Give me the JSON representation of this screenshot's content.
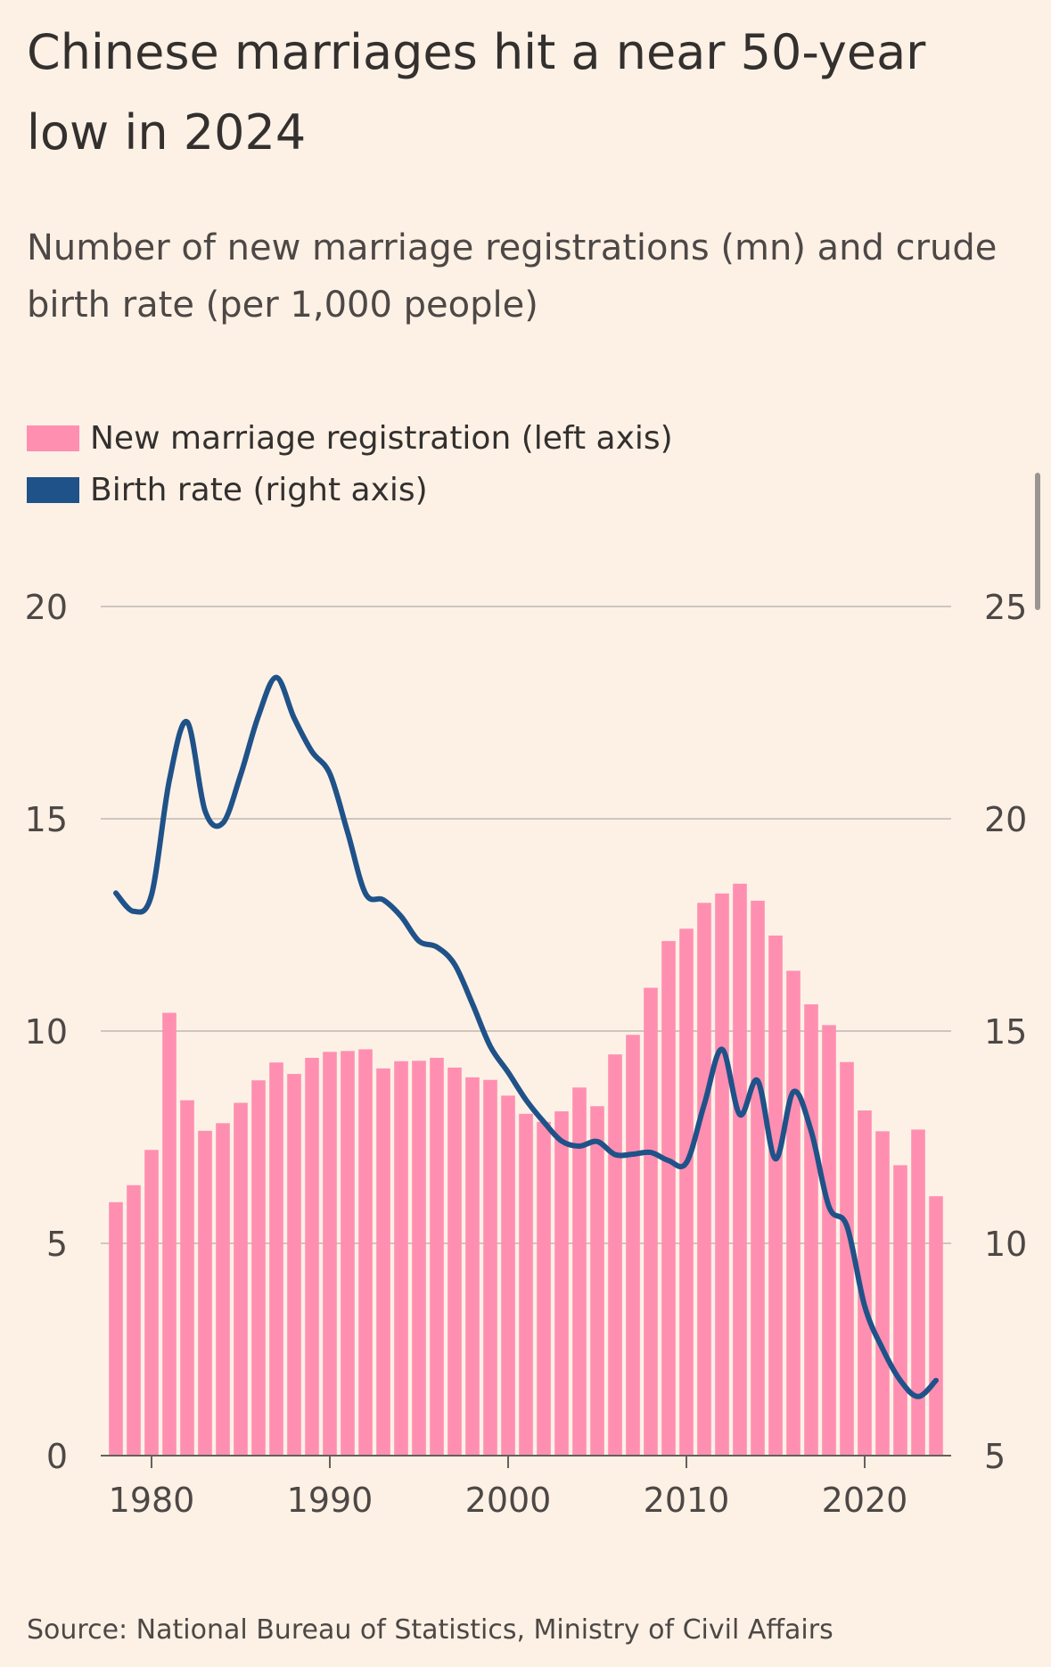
{
  "title": "Chinese marriages hit a near 50-year low in 2024",
  "subtitle": "Number of new marriage registrations (mn) and crude birth rate (per 1,000 people)",
  "source": "Source: National Bureau of Statistics, Ministry of Civil Affairs",
  "colors": {
    "background": "#fdf1e6",
    "bars": "#ff8fb1",
    "line": "#1f5288",
    "grid": "#cec6bf",
    "text": "#33302e"
  },
  "legend": [
    {
      "label": "New marriage registration (left axis)",
      "color": "#ff8fb1"
    },
    {
      "label": "Birth rate (right axis)",
      "color": "#1f5288"
    }
  ],
  "chart_data": {
    "type": "bar",
    "legend_position": "top-left",
    "grid": true,
    "x": [
      1978,
      1979,
      1980,
      1981,
      1982,
      1983,
      1984,
      1985,
      1986,
      1987,
      1988,
      1989,
      1990,
      1991,
      1992,
      1993,
      1994,
      1995,
      1996,
      1997,
      1998,
      1999,
      2000,
      2001,
      2002,
      2003,
      2004,
      2005,
      2006,
      2007,
      2008,
      2009,
      2010,
      2011,
      2012,
      2013,
      2014,
      2015,
      2016,
      2017,
      2018,
      2019,
      2020,
      2021,
      2022,
      2023,
      2024
    ],
    "x_ticks": [
      1980,
      1990,
      2000,
      2010,
      2020
    ],
    "left_axis": {
      "ylim": [
        0,
        20
      ],
      "ticks": [
        0,
        5,
        10,
        15,
        20
      ]
    },
    "right_axis": {
      "ylim": [
        5,
        25
      ],
      "ticks": [
        5,
        10,
        15,
        20,
        25
      ]
    },
    "series": [
      {
        "name": "New marriage registration (left axis)",
        "type": "bar",
        "axis": "left",
        "values": [
          5.97,
          6.37,
          7.2,
          10.43,
          8.37,
          7.65,
          7.83,
          8.31,
          8.84,
          9.26,
          8.99,
          9.37,
          9.51,
          9.53,
          9.57,
          9.12,
          9.29,
          9.3,
          9.37,
          9.14,
          8.91,
          8.85,
          8.48,
          8.05,
          7.86,
          8.11,
          8.67,
          8.23,
          9.45,
          9.91,
          11.02,
          12.12,
          12.41,
          13.02,
          13.24,
          13.47,
          13.07,
          12.25,
          11.42,
          10.63,
          10.14,
          9.27,
          8.13,
          7.64,
          6.84,
          7.68,
          6.11
        ]
      },
      {
        "name": "Birth rate (right axis)",
        "type": "line",
        "axis": "right",
        "values": [
          18.25,
          17.82,
          18.21,
          20.91,
          22.28,
          20.19,
          19.9,
          21.04,
          22.43,
          23.33,
          22.37,
          21.58,
          21.06,
          19.68,
          18.24,
          18.09,
          17.7,
          17.12,
          16.98,
          16.57,
          15.64,
          14.64,
          14.03,
          13.38,
          12.86,
          12.41,
          12.29,
          12.4,
          12.09,
          12.1,
          12.14,
          11.95,
          11.9,
          13.27,
          14.57,
          13.03,
          13.83,
          11.99,
          13.57,
          12.64,
          10.86,
          10.41,
          8.52,
          7.52,
          6.77,
          6.39,
          6.77
        ]
      }
    ]
  }
}
